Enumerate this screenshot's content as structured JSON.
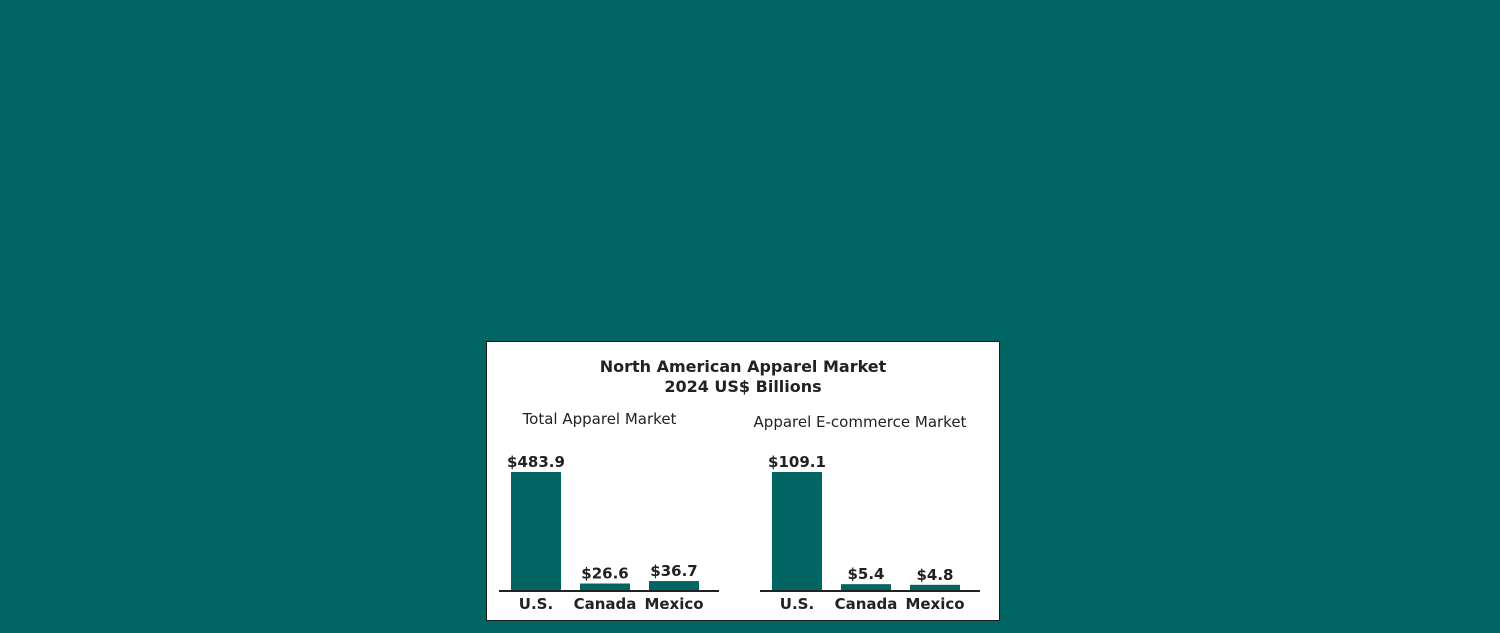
{
  "title": "North American Apparel Market",
  "subtitle": "2024 US$ Billions",
  "colors": {
    "background": "#016663",
    "bar": "#016663",
    "text": "#222222"
  },
  "chart_data": [
    {
      "type": "bar",
      "title": "Total Apparel Market",
      "categories": [
        "U.S.",
        "Canada",
        "Mexico"
      ],
      "values": [
        483.9,
        26.6,
        36.7
      ],
      "value_labels": [
        "$483.9",
        "$26.6",
        "$36.7"
      ],
      "ylim": [
        0,
        483.9
      ],
      "grid": false
    },
    {
      "type": "bar",
      "title": "Apparel E-commerce Market",
      "categories": [
        "U.S.",
        "Canada",
        "Mexico"
      ],
      "values": [
        109.1,
        5.4,
        4.8
      ],
      "value_labels": [
        "$109.1",
        "$5.4",
        "$4.8"
      ],
      "ylim": [
        0,
        109.1
      ],
      "grid": false
    }
  ]
}
